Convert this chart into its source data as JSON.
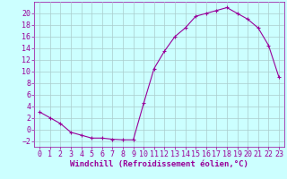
{
  "x": [
    0,
    1,
    2,
    3,
    4,
    5,
    6,
    7,
    8,
    9,
    10,
    11,
    12,
    13,
    14,
    15,
    16,
    17,
    18,
    19,
    20,
    21,
    22,
    23
  ],
  "y": [
    3,
    2,
    1,
    -0.5,
    -1,
    -1.5,
    -1.5,
    -1.7,
    -1.8,
    -1.8,
    4.5,
    10.5,
    13.5,
    16,
    17.5,
    19.5,
    20,
    20.5,
    21,
    20,
    19,
    17.5,
    14.5,
    9
  ],
  "title": "",
  "xlabel": "Windchill (Refroidissement éolien,°C)",
  "ylabel": "",
  "xlim": [
    -0.5,
    23.5
  ],
  "ylim": [
    -3,
    22
  ],
  "yticks": [
    -2,
    0,
    2,
    4,
    6,
    8,
    10,
    12,
    14,
    16,
    18,
    20
  ],
  "xticks": [
    0,
    1,
    2,
    3,
    4,
    5,
    6,
    7,
    8,
    9,
    10,
    11,
    12,
    13,
    14,
    15,
    16,
    17,
    18,
    19,
    20,
    21,
    22,
    23
  ],
  "line_color": "#990099",
  "marker": "+",
  "bg_color": "#ccffff",
  "grid_color": "#aacccc",
  "tick_fontsize": 6,
  "xlabel_fontsize": 6.5,
  "figsize": [
    3.2,
    2.0
  ],
  "dpi": 100
}
